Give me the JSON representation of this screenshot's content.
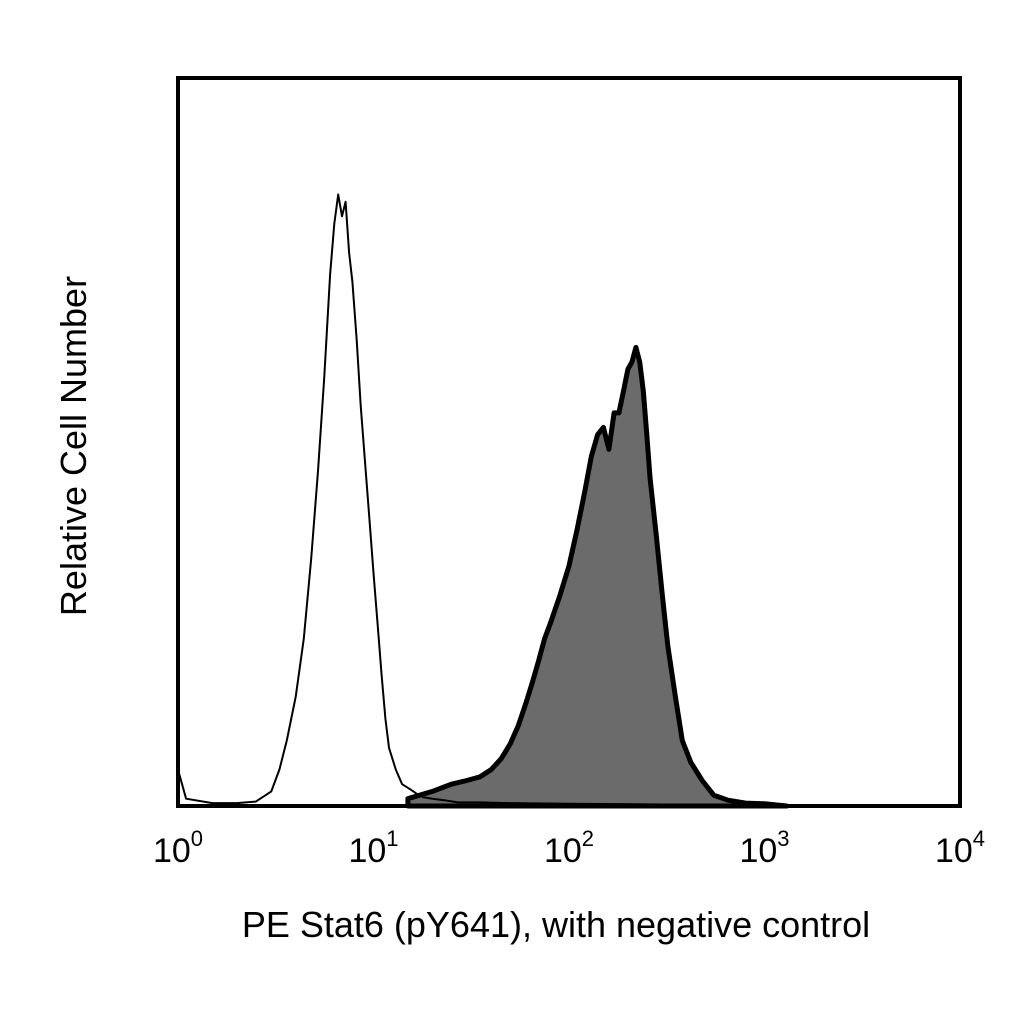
{
  "chart_data": {
    "type": "area",
    "xlabel": "PE Stat6 (pY641), with negative control",
    "ylabel": "Relative Cell Number",
    "x_scale": "log",
    "xlim": [
      1,
      10000
    ],
    "ylim": [
      0,
      100
    ],
    "grid": false,
    "legend": "none",
    "x_ticks": [
      {
        "base": "10",
        "exp": "0",
        "value": 1
      },
      {
        "base": "10",
        "exp": "1",
        "value": 10
      },
      {
        "base": "10",
        "exp": "2",
        "value": 100
      },
      {
        "base": "10",
        "exp": "3",
        "value": 1000
      },
      {
        "base": "10",
        "exp": "4",
        "value": 10000
      }
    ],
    "series": [
      {
        "style": "filled",
        "fill": "#6b6b6b",
        "stroke": "#000000",
        "x": [
          15,
          20,
          25,
          30,
          35,
          40,
          45,
          50,
          55,
          60,
          65,
          70,
          75,
          80,
          90,
          100,
          110,
          120,
          130,
          140,
          150,
          160,
          170,
          180,
          190,
          200,
          210,
          220,
          230,
          240,
          250,
          260,
          280,
          300,
          320,
          350,
          380,
          420,
          480,
          550,
          650,
          800,
          1000,
          1300
        ],
        "y": [
          1,
          2,
          3,
          3.5,
          4,
          5,
          6.5,
          8.5,
          11,
          14,
          17,
          20,
          23,
          25,
          29,
          33,
          38,
          43,
          48,
          51,
          52,
          49,
          54,
          54,
          57,
          60,
          61,
          63,
          61,
          57,
          51,
          45,
          37,
          29,
          22,
          15,
          9,
          6,
          3.5,
          1.5,
          0.8,
          0.4,
          0.3,
          0
        ]
      },
      {
        "style": "outline",
        "fill": "none",
        "stroke": "#000000",
        "x": [
          1,
          1.1,
          1.5,
          2,
          2.5,
          3,
          3.3,
          3.6,
          4,
          4.4,
          4.8,
          5.2,
          5.6,
          6,
          6.3,
          6.6,
          6.9,
          7.2,
          7.5,
          7.8,
          8.2,
          8.6,
          9,
          9.5,
          10,
          10.5,
          11,
          11.5,
          12,
          13,
          14,
          15,
          16,
          17,
          18,
          20,
          23,
          27,
          35,
          50,
          100,
          300,
          1000,
          10000
        ],
        "y": [
          5,
          1,
          0.4,
          0.4,
          0.6,
          2,
          5,
          9,
          15,
          23,
          34,
          46,
          59,
          73,
          80,
          84,
          81,
          83,
          76,
          72,
          64,
          55,
          48,
          40,
          32,
          25,
          18,
          12,
          8,
          5,
          3,
          2.5,
          2,
          1.5,
          1.2,
          1,
          0.8,
          0.5,
          0.5,
          0.4,
          0.3,
          0.2,
          0.1,
          0
        ]
      }
    ]
  }
}
